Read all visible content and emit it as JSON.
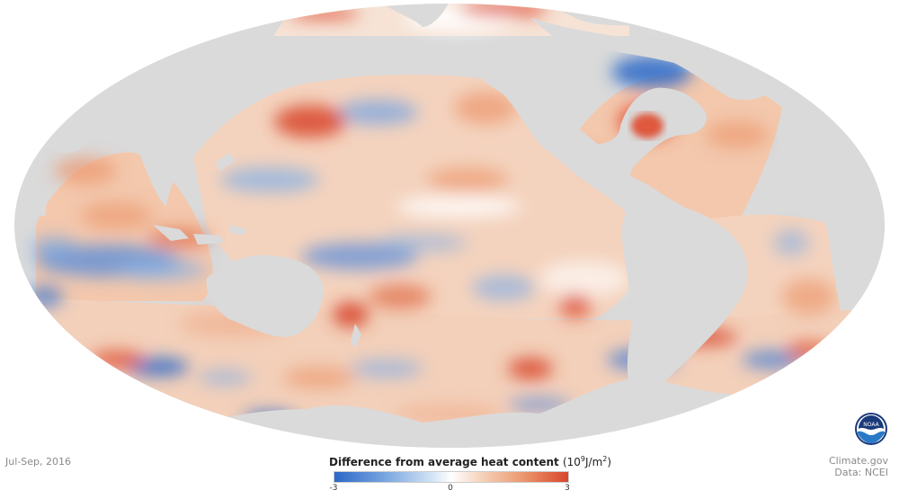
{
  "map": {
    "projection": "mollweide",
    "variable": "ocean heat content anomaly",
    "land_color": "#dadada",
    "ocean_base_color": "#f5e0d2",
    "warm_color": "#d8462b",
    "cool_color": "#2b67c8"
  },
  "period_label": "Jul-Sep, 2016",
  "legend": {
    "title_main": "Difference from average heat content",
    "title_unit_open": "(10",
    "title_unit_exp": "9",
    "title_unit_mid": "J/m",
    "title_unit_exp2": "2",
    "title_unit_close": ")",
    "min_label": "-3",
    "mid_label": "0",
    "max_label": "3",
    "min_value": -3,
    "max_value": 3,
    "color_low": "#2b67c8",
    "color_mid": "#ffffff",
    "color_high": "#d8462b"
  },
  "credit": {
    "site": "Climate.gov",
    "source": "Data: NCEI"
  },
  "logo": {
    "text": "NOAA",
    "icon": "noaa-logo-icon"
  }
}
